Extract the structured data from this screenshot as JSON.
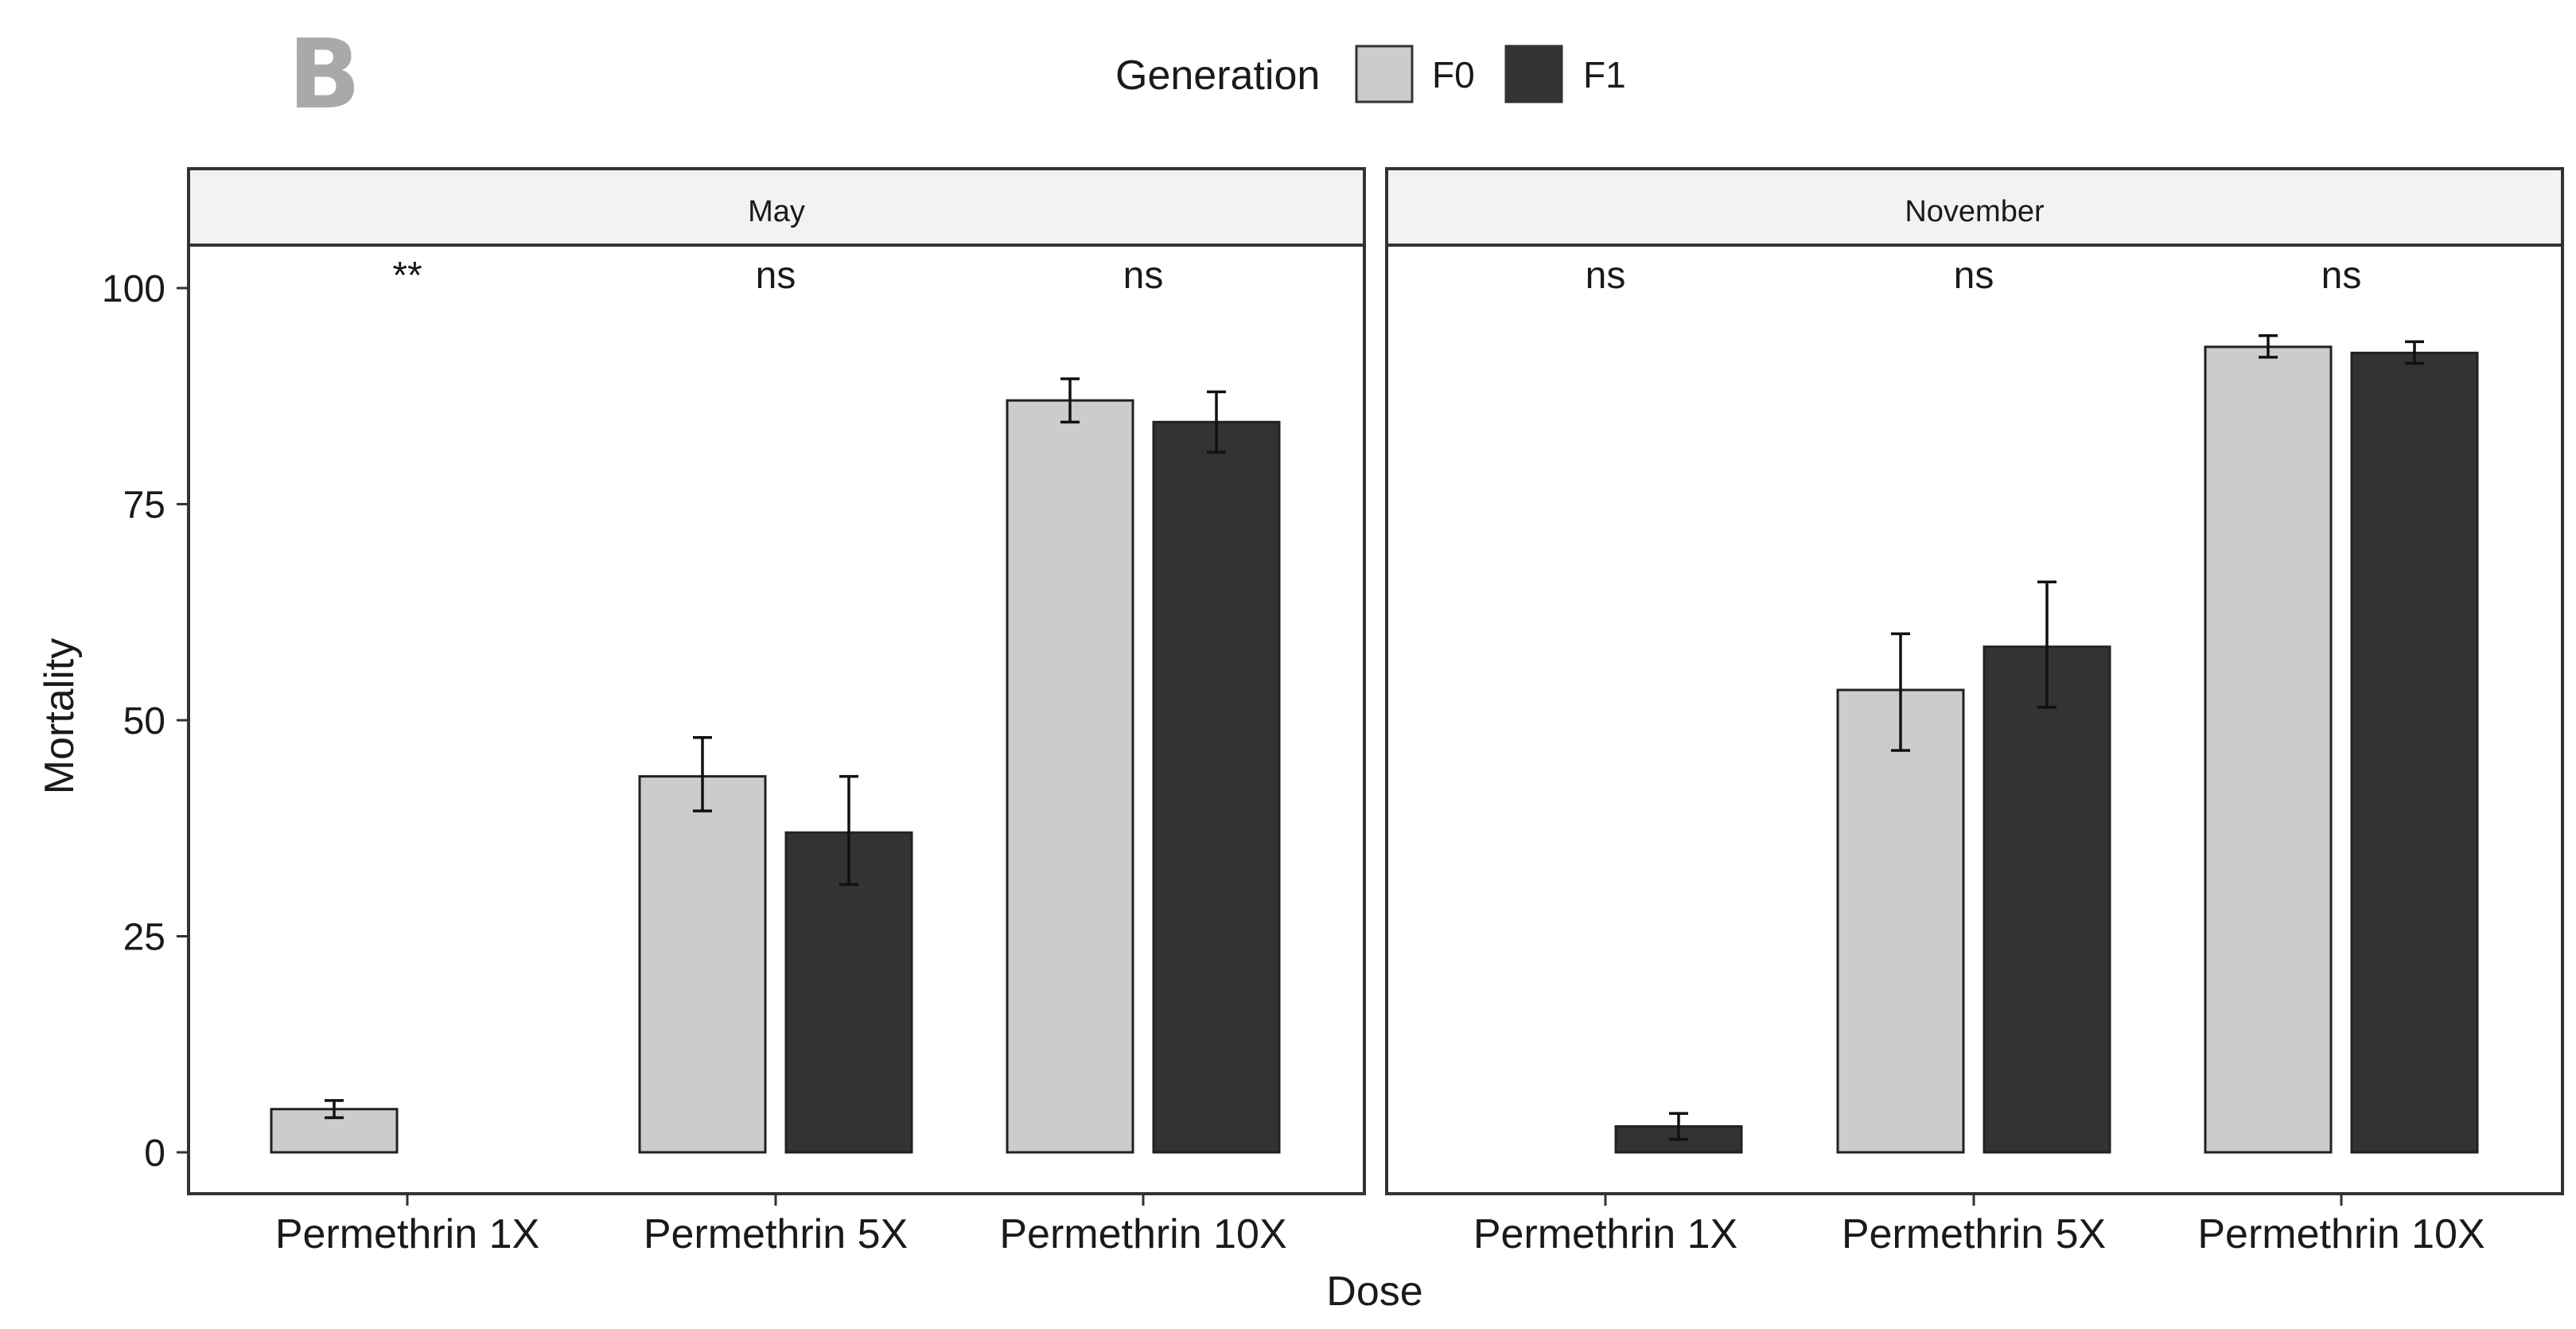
{
  "panel_tag": "B",
  "colors": {
    "F0": "#cccccc",
    "F1": "#333333",
    "strip": "#f2f2f2",
    "border": "#333333",
    "tag": "#a9a9a9"
  },
  "chart_data": {
    "type": "bar",
    "title": "",
    "xlabel": "Dose",
    "ylabel": "Mortality",
    "ylim": [
      0,
      110
    ],
    "yticks": [
      0,
      25,
      50,
      75,
      100
    ],
    "categories": [
      "Permethrin 1X",
      "Permethrin 5X",
      "Permethrin 10X"
    ],
    "legend": {
      "title": "Generation",
      "position": "top",
      "entries": [
        "F0",
        "F1"
      ]
    },
    "facets": [
      {
        "name": "May",
        "significance": [
          "**",
          "ns",
          "ns"
        ],
        "series": [
          {
            "name": "F0",
            "values": [
              5,
              43.5,
              87
            ],
            "err_low": [
              4,
              39.5,
              84.5
            ],
            "err_high": [
              6,
              48,
              89.5
            ]
          },
          {
            "name": "F1",
            "values": [
              0,
              37,
              84.5
            ],
            "err_low": [
              0,
              31,
              81
            ],
            "err_high": [
              0,
              43.5,
              88
            ]
          }
        ]
      },
      {
        "name": "November",
        "significance": [
          "ns",
          "ns",
          "ns"
        ],
        "series": [
          {
            "name": "F0",
            "values": [
              0,
              53.5,
              93.2
            ],
            "err_low": [
              0,
              46.5,
              92
            ],
            "err_high": [
              0,
              60,
              94.5
            ]
          },
          {
            "name": "F1",
            "values": [
              3,
              58.5,
              92.5
            ],
            "err_low": [
              1.5,
              51.5,
              91.3
            ],
            "err_high": [
              4.5,
              66,
              93.8
            ]
          }
        ]
      }
    ]
  }
}
